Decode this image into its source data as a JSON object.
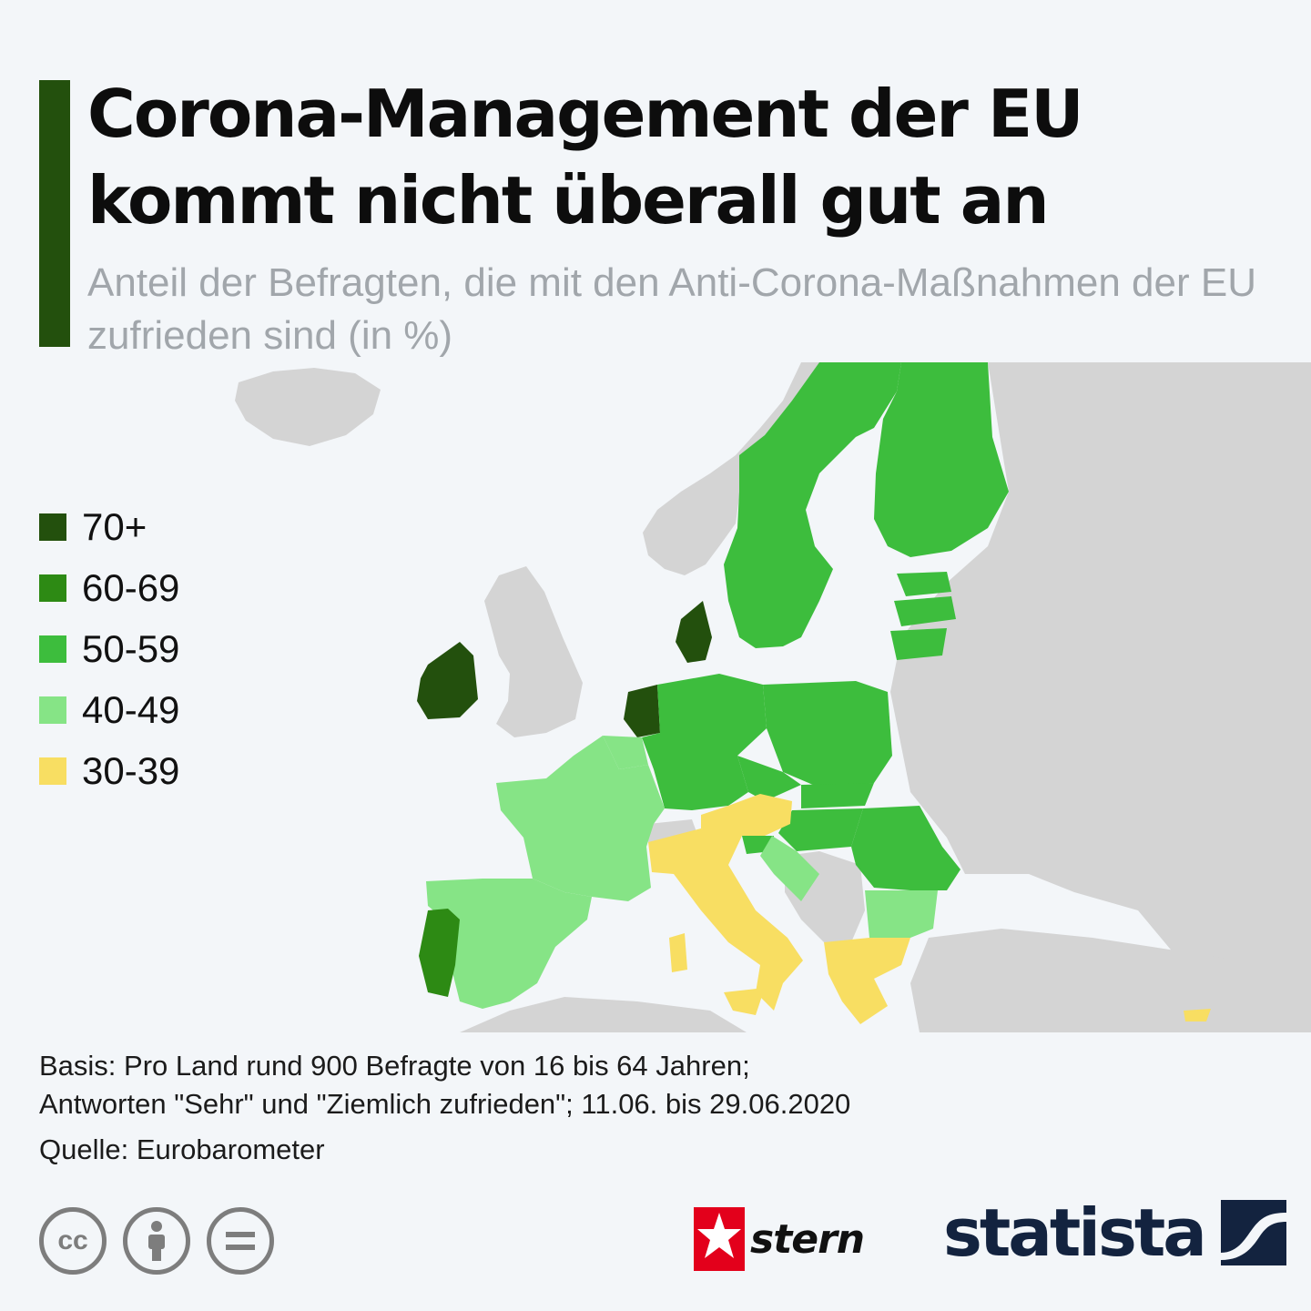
{
  "header": {
    "title": "Corona-Management der EU kommt nicht überall gut an",
    "subtitle": "Anteil der Befragten, die mit den Anti-Corona-Maßnahmen der EU zufrieden sind (in %)"
  },
  "legend": [
    {
      "label": "70+",
      "color": "#23500d"
    },
    {
      "label": "60-69",
      "color": "#2d8a14"
    },
    {
      "label": "50-59",
      "color": "#3dbd3d"
    },
    {
      "label": "40-49",
      "color": "#86e486"
    },
    {
      "label": "30-39",
      "color": "#f8de62"
    }
  ],
  "colors": {
    "background": "#f3f6f9",
    "non_eu_land": "#d4d4d4"
  },
  "map_data": {
    "Irland": "70+",
    "Dänemark": "70+",
    "Niederlande": "70+",
    "Portugal": "60-69",
    "Schweden": "50-59",
    "Finnland": "50-59",
    "Deutschland": "50-59",
    "Polen": "50-59",
    "Tschechien": "50-59",
    "Slowakei": "50-59",
    "Ungarn": "50-59",
    "Rumänien": "50-59",
    "Slowenien": "50-59",
    "Estland": "50-59",
    "Lettland": "50-59",
    "Litauen": "50-59",
    "Frankreich": "40-49",
    "Spanien": "40-49",
    "Belgien": "40-49",
    "Luxemburg": "40-49",
    "Kroatien": "40-49",
    "Bulgarien": "40-49",
    "Italien": "30-39",
    "Österreich": "30-39",
    "Griechenland": "30-39"
  },
  "footer": {
    "basis_line1": "Basis: Pro Land rund 900 Befragte von 16 bis 64 Jahren;",
    "basis_line2": "Antworten \"Sehr\" und \"Ziemlich zufrieden\"; 11.06. bis 29.06.2020",
    "source": "Quelle: Eurobarometer",
    "cc_icons": [
      "cc-icon",
      "by-person-icon",
      "nd-equals-icon"
    ],
    "stern_logo_text": "stern",
    "statista_logo_text": "statista"
  }
}
